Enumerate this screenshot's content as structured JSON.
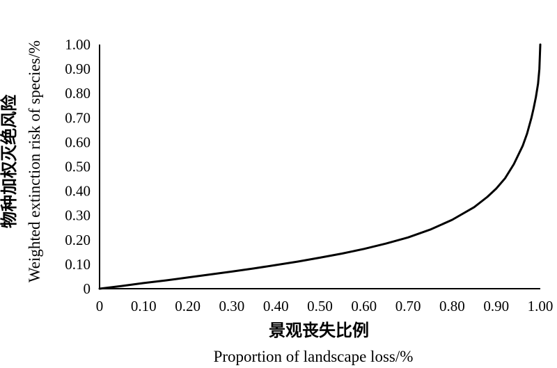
{
  "chart_data": {
    "type": "line",
    "xlabel": "景观丧失比例",
    "xlabel_en": "Proportion of landscape loss/%",
    "ylabel": "物种加权灭绝风险",
    "ylabel_en": "Weighted extinction risk of species/%",
    "xlim": [
      0,
      1
    ],
    "ylim": [
      0,
      1
    ],
    "grid": false,
    "legend": "none",
    "x_ticks": [
      "0",
      "0.10",
      "0.20",
      "0.30",
      "0.40",
      "0.50",
      "0.60",
      "0.70",
      "0.80",
      "0.90",
      "1.00"
    ],
    "y_ticks": [
      "0",
      "0.10",
      "0.20",
      "0.30",
      "0.40",
      "0.50",
      "0.60",
      "0.70",
      "0.80",
      "0.90",
      "1.00"
    ],
    "series": [
      {
        "color": "#000000",
        "x": [
          0,
          0.05,
          0.1,
          0.15,
          0.2,
          0.25,
          0.3,
          0.35,
          0.4,
          0.45,
          0.5,
          0.55,
          0.6,
          0.65,
          0.7,
          0.75,
          0.8,
          0.85,
          0.88,
          0.9,
          0.92,
          0.94,
          0.96,
          0.97,
          0.98,
          0.985,
          0.99,
          0.995,
          0.998,
          1.0
        ],
        "y": [
          0,
          0.011,
          0.023,
          0.034,
          0.046,
          0.058,
          0.07,
          0.083,
          0.097,
          0.111,
          0.127,
          0.144,
          0.163,
          0.185,
          0.21,
          0.242,
          0.282,
          0.334,
          0.376,
          0.41,
          0.452,
          0.51,
          0.585,
          0.635,
          0.7,
          0.74,
          0.785,
          0.84,
          0.9,
          1.0
        ]
      }
    ]
  }
}
